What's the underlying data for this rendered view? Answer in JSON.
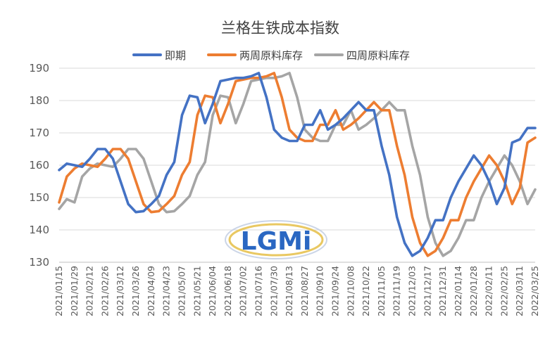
{
  "chart_data": {
    "type": "line",
    "title": "兰格生铁成本指数",
    "xlabel": "",
    "ylabel": "",
    "ylim": [
      130,
      190
    ],
    "yticks": [
      130,
      140,
      150,
      160,
      170,
      180,
      190
    ],
    "grid": true,
    "legend_position": "top",
    "x": [
      "2021/01/15",
      "2021/01/22",
      "2021/01/29",
      "2021/02/05",
      "2021/02/12",
      "2021/02/19",
      "2021/02/26",
      "2021/03/05",
      "2021/03/12",
      "2021/03/19",
      "2021/03/26",
      "2021/04/02",
      "2021/04/09",
      "2021/04/16",
      "2021/04/23",
      "2021/04/30",
      "2021/05/07",
      "2021/05/14",
      "2021/05/21",
      "2021/05/28",
      "2021/06/04",
      "2021/06/11",
      "2021/06/18",
      "2021/06/25",
      "2021/07/02",
      "2021/07/09",
      "2021/07/16",
      "2021/07/23",
      "2021/07/30",
      "2021/08/06",
      "2021/08/13",
      "2021/08/20",
      "2021/08/27",
      "2021/09/03",
      "2021/09/10",
      "2021/09/17",
      "2021/09/24",
      "2021/10/01",
      "2021/10/08",
      "2021/10/15",
      "2021/10/22",
      "2021/10/29",
      "2021/11/05",
      "2021/11/12",
      "2021/11/19",
      "2021/11/26",
      "2021/12/03",
      "2021/12/10",
      "2021/12/17",
      "2021/12/24",
      "2021/12/31",
      "2022/01/07",
      "2022/01/14",
      "2022/01/21",
      "2022/01/28",
      "2022/02/04",
      "2022/02/11",
      "2022/02/18",
      "2022/02/25",
      "2022/03/04",
      "2022/03/11",
      "2022/03/18",
      "2022/03/25"
    ],
    "xtick_labels": [
      "2021/01/15",
      "2021/01/29",
      "2021/02/12",
      "2021/02/26",
      "2021/03/12",
      "2021/03/26",
      "2021/04/09",
      "2021/04/23",
      "2021/05/07",
      "2021/05/21",
      "2021/06/04",
      "2021/06/18",
      "2021/07/02",
      "2021/07/16",
      "2021/07/30",
      "2021/08/13",
      "2021/08/27",
      "2021/09/10",
      "2021/09/24",
      "2021/10/08",
      "2021/10/22",
      "2021/11/05",
      "2021/11/19",
      "2021/12/03",
      "2021/12/17",
      "2021/12/31",
      "2022/01/14",
      "2022/01/28",
      "2022/02/11",
      "2022/02/25",
      "2022/03/11",
      "2022/03/25"
    ],
    "series": [
      {
        "name": "即期",
        "color": "#4472C4",
        "values": [
          158.5,
          160.5,
          160,
          159.5,
          162,
          165,
          165,
          162,
          155,
          148,
          145.5,
          145.8,
          148,
          150.5,
          157,
          161,
          175.5,
          181.5,
          181,
          173,
          179,
          186,
          186.5,
          187,
          187,
          187.5,
          188.5,
          181,
          171,
          168.5,
          167.5,
          167.5,
          172.5,
          172.5,
          177,
          171,
          172.5,
          174.5,
          177,
          179.5,
          177,
          177,
          166,
          157,
          144,
          136,
          132,
          133.5,
          137.5,
          143,
          143,
          150,
          155,
          159,
          163,
          160,
          155,
          148,
          153,
          167,
          168,
          171.5,
          171.5
        ]
      },
      {
        "name": "两周原料库存",
        "color": "#ED7D31",
        "values": [
          148.5,
          156.5,
          159,
          160.5,
          160,
          159.5,
          162,
          165,
          165,
          162,
          155,
          148,
          145.5,
          145.8,
          148,
          150.5,
          157,
          161,
          175.5,
          181.5,
          181,
          173,
          179,
          186,
          186.5,
          187,
          187,
          187.5,
          188.5,
          181,
          171,
          168.5,
          167.5,
          167.5,
          172.5,
          172.5,
          177,
          171,
          172.5,
          174.5,
          177,
          179.5,
          177,
          177,
          166,
          157,
          144,
          136,
          132,
          133.5,
          137.5,
          143,
          143,
          150,
          155,
          159,
          163,
          160,
          155,
          148,
          153,
          167,
          168.5
        ]
      },
      {
        "name": "四周原料库存",
        "color": "#A5A5A5",
        "values": [
          146.5,
          149.5,
          148.5,
          156.5,
          159,
          160.5,
          160,
          159.5,
          162,
          165,
          165,
          162,
          155,
          148,
          145.5,
          145.8,
          148,
          150.5,
          157,
          161,
          175.5,
          181.5,
          181,
          173,
          179,
          186,
          186.5,
          187,
          187,
          187.5,
          188.5,
          181,
          171,
          168.5,
          167.5,
          167.5,
          172.5,
          172.5,
          177,
          171,
          172.5,
          174.5,
          177,
          179.5,
          177,
          177,
          166,
          157,
          144,
          136,
          132,
          133.5,
          137.5,
          143,
          143,
          150,
          155,
          159,
          163,
          160,
          155,
          148,
          152.5
        ]
      }
    ]
  },
  "logo": {
    "text": "LGMi",
    "color": "#1f5fbf"
  }
}
